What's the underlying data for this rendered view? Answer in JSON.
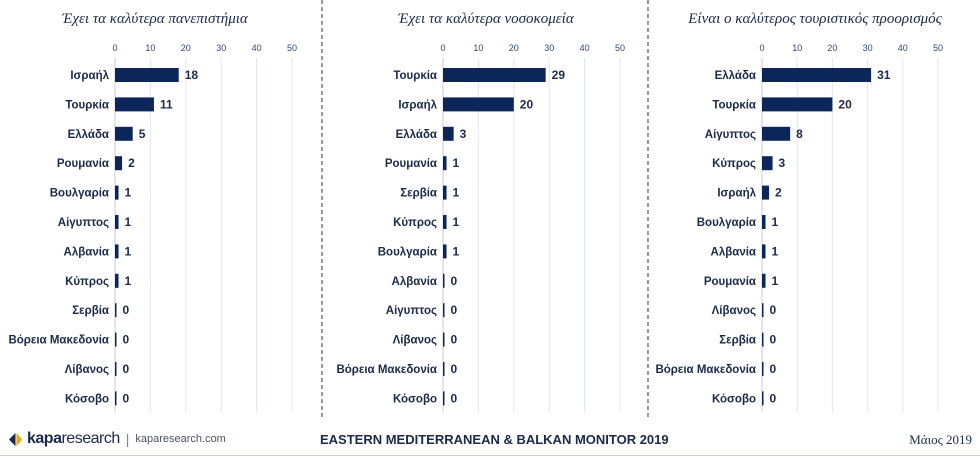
{
  "chart_data": [
    {
      "type": "bar",
      "orientation": "horizontal",
      "title": "Έχει τα καλύτερα πανεπιστήμια",
      "categories": [
        "Ισραήλ",
        "Τουρκία",
        "Ελλάδα",
        "Ρουμανία",
        "Βουλγαρία",
        "Αίγυπτος",
        "Αλβανία",
        "Κύπρος",
        "Σερβία",
        "Βόρεια Μακεδονία",
        "Λίβανος",
        "Κόσοβο"
      ],
      "values": [
        18,
        11,
        5,
        2,
        1,
        1,
        1,
        1,
        0,
        0,
        0,
        0
      ],
      "xlim": [
        0,
        50
      ],
      "ticks": [
        0,
        10,
        20,
        30,
        40,
        50
      ],
      "grid": true,
      "color": "#0d2659"
    },
    {
      "type": "bar",
      "orientation": "horizontal",
      "title": "Έχει τα καλύτερα νοσοκομεία",
      "categories": [
        "Τουρκία",
        "Ισραήλ",
        "Ελλάδα",
        "Ρουμανία",
        "Σερβία",
        "Κύπρος",
        "Βουλγαρία",
        "Αλβανία",
        "Αίγυπτος",
        "Λίβανος",
        "Βόρεια Μακεδονία",
        "Κόσοβο"
      ],
      "values": [
        29,
        20,
        3,
        1,
        1,
        1,
        1,
        0,
        0,
        0,
        0,
        0
      ],
      "xlim": [
        0,
        50
      ],
      "ticks": [
        0,
        10,
        20,
        30,
        40,
        50
      ],
      "grid": true,
      "color": "#0d2659"
    },
    {
      "type": "bar",
      "orientation": "horizontal",
      "title": "Είναι ο καλύτερος τουριστικός προορισμός",
      "categories": [
        "Ελλάδα",
        "Τουρκία",
        "Αίγυπτος",
        "Κύπρος",
        "Ισραήλ",
        "Βουλγαρία",
        "Αλβανία",
        "Ρουμανία",
        "Λίβανος",
        "Σερβία",
        "Βόρεια Μακεδονία",
        "Κόσοβο"
      ],
      "values": [
        31,
        20,
        8,
        3,
        2,
        1,
        1,
        1,
        0,
        0,
        0,
        0
      ],
      "xlim": [
        0,
        50
      ],
      "ticks": [
        0,
        10,
        20,
        30,
        40,
        50
      ],
      "grid": true,
      "color": "#0d2659"
    }
  ],
  "footer": {
    "brand_kapa": "kapa",
    "brand_research": "research",
    "divider": "|",
    "website": "kaparesearch.com",
    "title": "EASTERN MEDITERRANEAN & BALKAN MONITOR 2019",
    "date": "Μάιος 2019"
  }
}
